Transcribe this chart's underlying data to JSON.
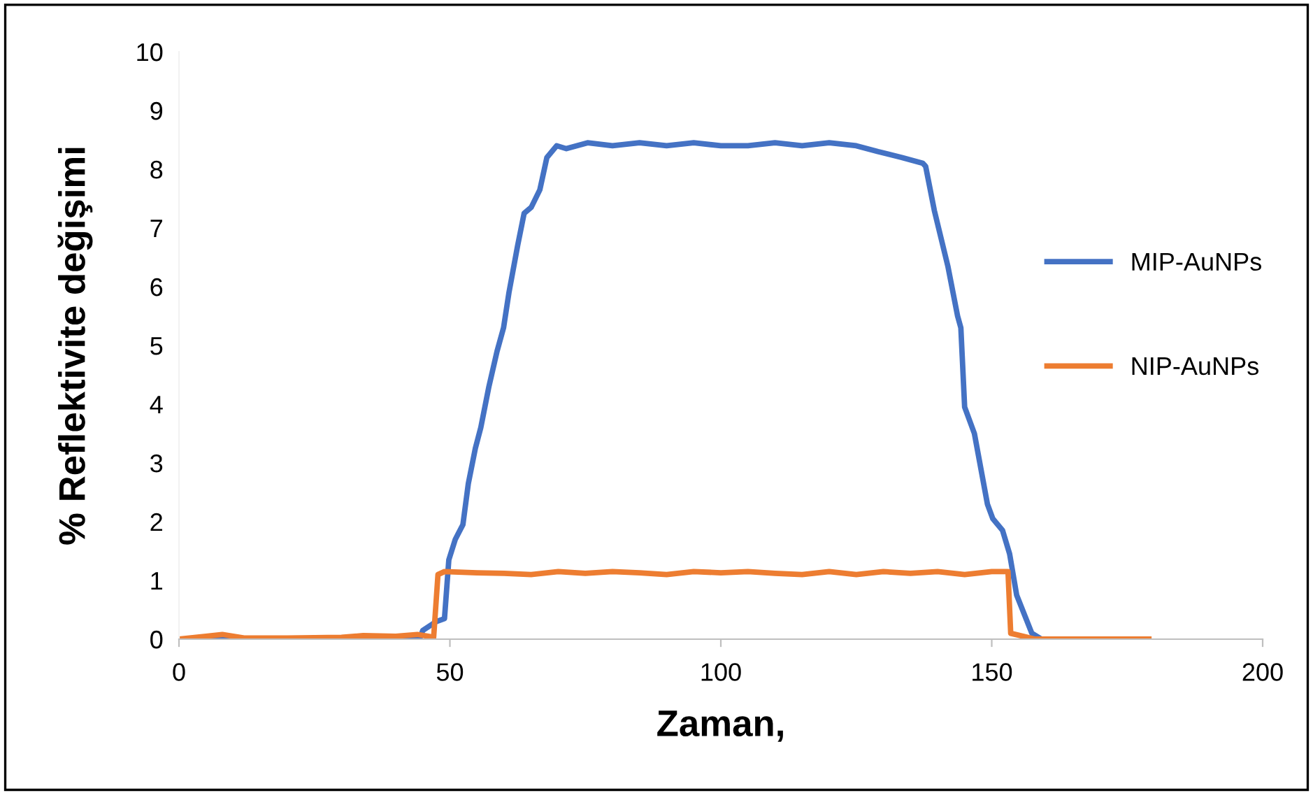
{
  "chart_data": {
    "type": "line",
    "xlabel": "Zaman,",
    "ylabel": "% Reflektivite değişimi",
    "xlim": [
      0,
      200
    ],
    "xticks": [
      0,
      50,
      100,
      150,
      200
    ],
    "ylim": [
      0,
      10
    ],
    "yticks": [
      0,
      1,
      2,
      3,
      4,
      5,
      6,
      7,
      8,
      9,
      10
    ],
    "grid": false,
    "legend": "right",
    "marker": "none",
    "line_style": "solid",
    "series": [
      {
        "name": "MIP-AuNPs",
        "color": "#4472c4",
        "x": [
          0,
          44.4,
          45,
          47.5,
          49,
          49.8,
          51,
          52.4,
          53.4,
          54.7,
          55.7,
          57.2,
          58.7,
          59.9,
          60.9,
          62.5,
          63.7,
          65,
          66.6,
          67.9,
          69.7,
          71.5,
          75.4,
          80,
          85,
          90,
          95,
          100,
          105,
          110,
          115,
          120,
          125,
          129,
          133.4,
          137.3,
          137.8,
          139.4,
          141.9,
          143.7,
          144.3,
          145,
          146.8,
          149.2,
          150.2,
          152,
          153.3,
          154.6,
          157.4,
          159.2,
          160
        ],
        "values": [
          0,
          0,
          0.15,
          0.3,
          0.35,
          1.35,
          1.7,
          1.95,
          2.65,
          3.25,
          3.6,
          4.3,
          4.9,
          5.3,
          5.9,
          6.7,
          7.25,
          7.35,
          7.65,
          8.2,
          8.4,
          8.35,
          8.45,
          8.4,
          8.45,
          8.4,
          8.45,
          8.4,
          8.4,
          8.45,
          8.4,
          8.45,
          8.4,
          8.3,
          8.2,
          8.1,
          8.05,
          7.3,
          6.35,
          5.5,
          5.3,
          3.95,
          3.5,
          2.3,
          2.05,
          1.85,
          1.45,
          0.75,
          0.1,
          0,
          0
        ]
      },
      {
        "name": "NIP-AuNPs",
        "color": "#ed7d31",
        "x": [
          0,
          5,
          8,
          12,
          20,
          30,
          34,
          40,
          44,
          46,
          47,
          47.8,
          49,
          55,
          60,
          65,
          70,
          75,
          80,
          85,
          90,
          95,
          100,
          105,
          110,
          115,
          120,
          125,
          130,
          135,
          140,
          145,
          150,
          153,
          153.5,
          158,
          179
        ],
        "values": [
          0,
          0.05,
          0.08,
          0.02,
          0.02,
          0.03,
          0.06,
          0.05,
          0.08,
          0.05,
          0.03,
          1.1,
          1.15,
          1.13,
          1.12,
          1.1,
          1.15,
          1.12,
          1.15,
          1.13,
          1.1,
          1.15,
          1.13,
          1.15,
          1.12,
          1.1,
          1.15,
          1.1,
          1.15,
          1.12,
          1.15,
          1.1,
          1.15,
          1.15,
          0.1,
          0,
          0
        ]
      }
    ]
  }
}
